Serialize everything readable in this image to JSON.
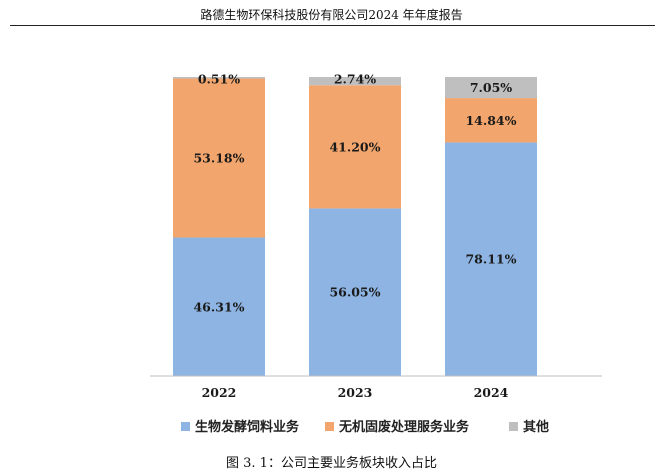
{
  "header": {
    "title": "路德生物环保科技股份有限公司2024 年年度报告"
  },
  "caption": {
    "text": "图 3. 1：公司主要业务板块收入占比"
  },
  "chart_data": {
    "type": "bar",
    "stacked": true,
    "percent": true,
    "categories": [
      "2022",
      "2023",
      "2024"
    ],
    "ylim": [
      0,
      100
    ],
    "grid": false,
    "legend_position": "bottom",
    "series": [
      {
        "name": "生物发酵饲料业务",
        "color": "#8DB4E2",
        "values": [
          46.31,
          56.05,
          78.11
        ],
        "labels": [
          "46.31%",
          "56.05%",
          "78.11%"
        ]
      },
      {
        "name": "无机固废处理服务业务",
        "color": "#F2A56C",
        "values": [
          53.18,
          41.2,
          14.84
        ],
        "labels": [
          "53.18%",
          "41.20%",
          "14.84%"
        ]
      },
      {
        "name": "其他",
        "color": "#BFBFBF",
        "values": [
          0.51,
          2.74,
          7.05
        ],
        "labels": [
          "0.51%",
          "2.74%",
          "7.05%"
        ]
      }
    ]
  }
}
